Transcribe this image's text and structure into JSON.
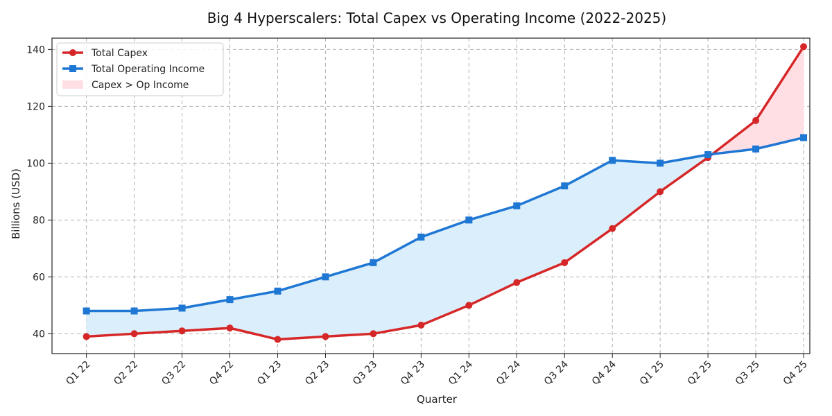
{
  "chart_data": {
    "type": "line",
    "title": "Big 4 Hyperscalers: Total Capex vs Operating Income (2022-2025)",
    "xlabel": "Quarter",
    "ylabel": "Billions (USD)",
    "categories": [
      "Q1 22",
      "Q2 22",
      "Q3 22",
      "Q4 22",
      "Q1 23",
      "Q2 23",
      "Q3 23",
      "Q4 23",
      "Q1 24",
      "Q2 24",
      "Q3 24",
      "Q4 24",
      "Q1 25",
      "Q2 25",
      "Q3 25",
      "Q4 25"
    ],
    "series": [
      {
        "name": "Total Capex",
        "color": "#d62728",
        "marker": "circle",
        "values": [
          39,
          40,
          41,
          42,
          38,
          39,
          40,
          43,
          50,
          58,
          65,
          77,
          90,
          102,
          115,
          141
        ]
      },
      {
        "name": "Total Operating Income",
        "color": "#1f77d4",
        "marker": "square",
        "values": [
          48,
          48,
          49,
          52,
          55,
          60,
          65,
          74,
          80,
          85,
          92,
          101,
          100,
          103,
          105,
          109
        ]
      }
    ],
    "fill_regions": [
      {
        "name": "Capex > Op Income",
        "color": "#ffdfe3",
        "condition": "capex_gt_income"
      },
      {
        "name": "",
        "color": "#dbeefb",
        "condition": "income_gt_capex"
      }
    ],
    "ylim": [
      33,
      144
    ],
    "yticks": [
      40,
      60,
      80,
      100,
      120,
      140
    ],
    "grid": true,
    "legend": "top-left"
  }
}
